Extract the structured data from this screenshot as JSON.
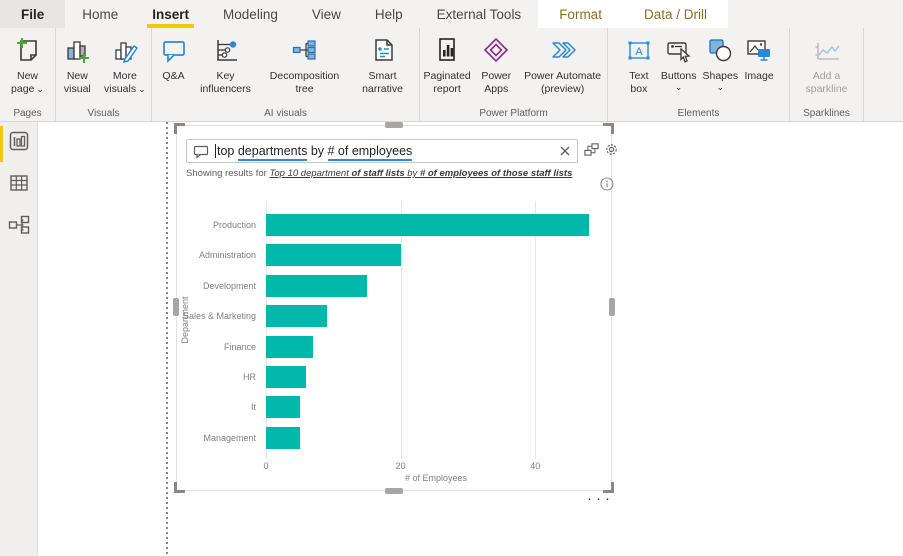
{
  "menubar": {
    "tabs": [
      {
        "label": "File"
      },
      {
        "label": "Home"
      },
      {
        "label": "Insert",
        "active": true
      },
      {
        "label": "Modeling"
      },
      {
        "label": "View"
      },
      {
        "label": "Help"
      },
      {
        "label": "External Tools"
      },
      {
        "label": "Format",
        "contextual": true
      },
      {
        "label": "Data / Drill",
        "contextual": true
      }
    ]
  },
  "ribbon": {
    "groups": [
      {
        "label": "Pages",
        "buttons": [
          {
            "label": "New page",
            "chevron": true
          }
        ]
      },
      {
        "label": "Visuals",
        "buttons": [
          {
            "label": "New visual"
          },
          {
            "label": "More visuals",
            "chevron": true
          }
        ]
      },
      {
        "label": "AI visuals",
        "buttons": [
          {
            "label": "Q&A"
          },
          {
            "label": "Key influencers"
          },
          {
            "label": "Decomposition tree"
          },
          {
            "label": "Smart narrative"
          }
        ]
      },
      {
        "label": "Power Platform",
        "buttons": [
          {
            "label": "Paginated report"
          },
          {
            "label": "Power Apps"
          },
          {
            "label": "Power Automate (preview)"
          }
        ]
      },
      {
        "label": "Elements",
        "buttons": [
          {
            "label": "Text box"
          },
          {
            "label": "Buttons",
            "chevron_below": true
          },
          {
            "label": "Shapes",
            "chevron_below": true
          },
          {
            "label": "Image"
          }
        ]
      },
      {
        "label": "Sparklines",
        "buttons": [
          {
            "label": "Add a sparkline",
            "disabled": true
          }
        ]
      }
    ]
  },
  "icons": {
    "chevron": "⌄"
  },
  "qa": {
    "query_parts": [
      {
        "text": "top ",
        "underline": false
      },
      {
        "text": "departments",
        "underline": true
      },
      {
        "text": " by ",
        "underline": false
      },
      {
        "text": "# of employees",
        "underline": true
      }
    ],
    "showing_prefix": "Showing results for ",
    "interpretation_parts": [
      {
        "text": "Top 10 department ",
        "bold": false
      },
      {
        "text": "of staff lists ",
        "bold": true
      },
      {
        "text": "by ",
        "bold": false
      },
      {
        "text": "# of employees ",
        "bold": true
      },
      {
        "text": "of those staff lists",
        "bold": true
      }
    ]
  },
  "chart_data": {
    "type": "bar",
    "orientation": "horizontal",
    "categories": [
      "Production",
      "Administration",
      "Development",
      "Sales & Marketing",
      "Finance",
      "HR",
      "It",
      "Management"
    ],
    "values": [
      48,
      20,
      15,
      9,
      7,
      6,
      5,
      5
    ],
    "xlabel": "# of Employees",
    "ylabel": "Department",
    "xticks": [
      0,
      20,
      40
    ],
    "xlim": [
      0,
      50.5
    ],
    "grid": true,
    "legend": false,
    "bar_color": "#01b8aa"
  },
  "canvas": {
    "more_options": "···"
  },
  "colors": {
    "accent_yellow": "#f2c80f",
    "teal": "#01b8aa",
    "contextual_tab_text": "#867123",
    "icon_blue": "#2b88d8",
    "power_apps_purple": "#8a2d8a",
    "ribbon_bg": "#f3f2f1"
  }
}
